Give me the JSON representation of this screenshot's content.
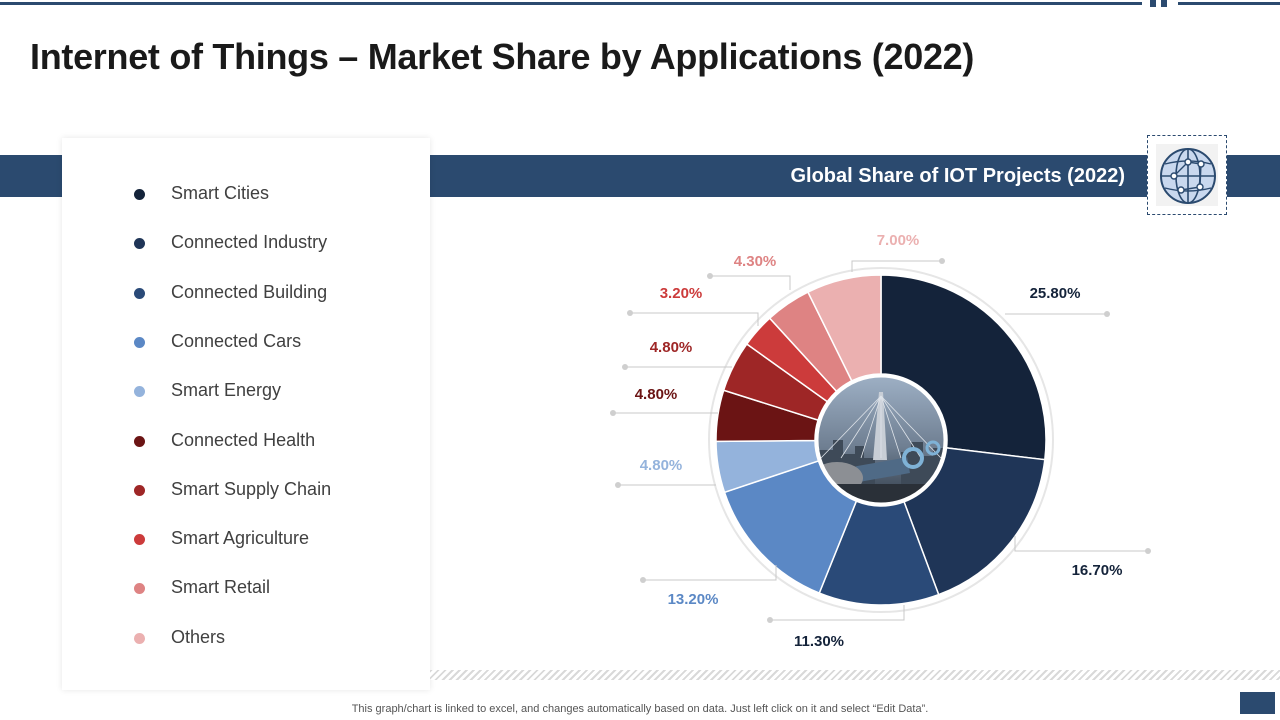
{
  "page": {
    "title": "Internet of Things – Market Share by Applications (2022)",
    "footnote": "This graph/chart is linked to excel,  and changes automatically based on data. Just left click on it and select “Edit Data”."
  },
  "banner": {
    "title": "Global Share of IOT Projects (2022)"
  },
  "icon": {
    "name": "globe-network-icon"
  },
  "center_image": {
    "name": "city-bridge-photo"
  },
  "colors": {
    "brand": "#2b4a6f",
    "banner": "#2b4a6f"
  },
  "legend": [
    {
      "label": "Smart Cities",
      "color": "#14233a"
    },
    {
      "label": "Connected Industry",
      "color": "#1f3557"
    },
    {
      "label": "Connected Building",
      "color": "#2a4a78"
    },
    {
      "label": "Connected Cars",
      "color": "#5b88c5"
    },
    {
      "label": "Smart Energy",
      "color": "#94b3dc"
    },
    {
      "label": "Connected Health",
      "color": "#6b1414"
    },
    {
      "label": "Smart Supply Chain",
      "color": "#9e2626"
    },
    {
      "label": "Smart Agriculture",
      "color": "#cc3b3b"
    },
    {
      "label": "Smart Retail",
      "color": "#de8383"
    },
    {
      "label": "Others",
      "color": "#ebb0b0"
    }
  ],
  "chart_data": {
    "type": "pie",
    "variant": "donut",
    "title": "Global Share of IOT Projects (2022)",
    "categories": [
      "Smart Cities",
      "Connected Industry",
      "Connected Building",
      "Connected Cars",
      "Smart Energy",
      "Connected Health",
      "Smart Supply Chain",
      "Smart Agriculture",
      "Smart Retail",
      "Others"
    ],
    "values": [
      25.8,
      16.7,
      11.3,
      13.2,
      4.8,
      4.8,
      4.8,
      3.2,
      4.3,
      7.0
    ],
    "labels": [
      "25.80%",
      "16.70%",
      "11.30%",
      "13.20%",
      "4.80%",
      "4.80%",
      "4.80%",
      "3.20%",
      "4.30%",
      "7.00%"
    ],
    "colors": [
      "#14233a",
      "#1f3557",
      "#2a4a78",
      "#5b88c5",
      "#94b3dc",
      "#6b1414",
      "#9e2626",
      "#cc3b3b",
      "#de8383",
      "#ebb0b0"
    ],
    "label_colors": [
      "#14233a",
      "#14233a",
      "#14233a",
      "#5b88c5",
      "#94b3dc",
      "#6b1414",
      "#9e2626",
      "#cc3b3b",
      "#de8383",
      "#ebb0b0"
    ],
    "legend_position": "left"
  }
}
